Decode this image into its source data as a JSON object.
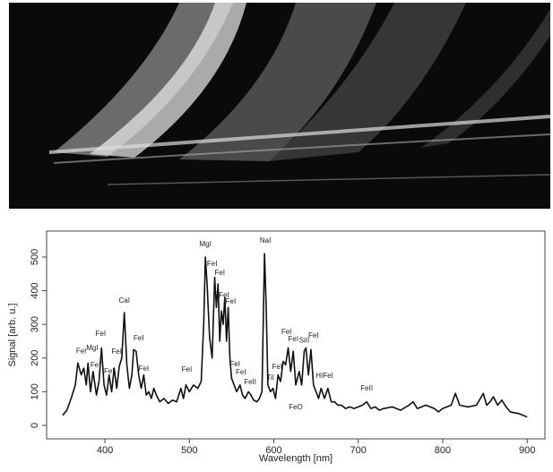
{
  "chart_data": {
    "type": "line",
    "xlabel": "Wavelength [nm]",
    "ylabel": "Signal [arb. u.]",
    "x": [
      350,
      355,
      360,
      365,
      368,
      372,
      375,
      378,
      380,
      383,
      386,
      390,
      393,
      396,
      399,
      402,
      405,
      408,
      411,
      414,
      417,
      420,
      423,
      426,
      429,
      432,
      434,
      437,
      440,
      443,
      446,
      449,
      452,
      455,
      458,
      461,
      465,
      470,
      475,
      480,
      485,
      490,
      493,
      496,
      500,
      505,
      510,
      514,
      517,
      519,
      521,
      524,
      527,
      530,
      532,
      534,
      536,
      538,
      540,
      542,
      544,
      546,
      548,
      550,
      553,
      556,
      560,
      563,
      566,
      570,
      573,
      576,
      580,
      583,
      586,
      589,
      591,
      593,
      596,
      599,
      602,
      605,
      608,
      611,
      614,
      617,
      620,
      623,
      626,
      630,
      633,
      636,
      638,
      641,
      644,
      647,
      650,
      653,
      656,
      660,
      664,
      668,
      672,
      676,
      680,
      685,
      690,
      695,
      700,
      705,
      710,
      715,
      720,
      725,
      730,
      740,
      750,
      760,
      765,
      770,
      780,
      790,
      795,
      800,
      810,
      815,
      820,
      830,
      840,
      848,
      852,
      856,
      860,
      865,
      870,
      875,
      880,
      890,
      900
    ],
    "series": [
      {
        "color": "#111111",
        "values": [
          30,
          45,
          80,
          120,
          185,
          150,
          170,
          120,
          185,
          100,
          160,
          90,
          130,
          230,
          120,
          90,
          150,
          100,
          170,
          110,
          175,
          200,
          335,
          180,
          110,
          150,
          225,
          220,
          150,
          110,
          150,
          90,
          100,
          80,
          110,
          90,
          70,
          80,
          65,
          75,
          70,
          110,
          80,
          120,
          100,
          120,
          110,
          130,
          300,
          500,
          420,
          260,
          200,
          440,
          350,
          420,
          250,
          340,
          300,
          380,
          250,
          350,
          200,
          140,
          120,
          100,
          120,
          90,
          80,
          100,
          90,
          75,
          70,
          80,
          100,
          510,
          350,
          120,
          100,
          110,
          80,
          150,
          130,
          190,
          180,
          230,
          160,
          220,
          120,
          160,
          120,
          220,
          230,
          150,
          225,
          120,
          100,
          80,
          110,
          80,
          110,
          70,
          70,
          60,
          60,
          50,
          55,
          50,
          55,
          60,
          70,
          50,
          55,
          45,
          50,
          55,
          45,
          60,
          70,
          50,
          60,
          50,
          40,
          50,
          60,
          95,
          60,
          55,
          60,
          95,
          60,
          70,
          85,
          60,
          75,
          55,
          40,
          35,
          25
        ]
      }
    ],
    "xlim": [
      331,
      921
    ],
    "ylim": [
      -40,
      577
    ],
    "xticks": [
      400,
      500,
      600,
      700,
      800,
      900
    ],
    "yticks": [
      0,
      100,
      200,
      300,
      400,
      500
    ],
    "annotations": [
      {
        "text": "FeI",
        "x": 372,
        "y": 220
      },
      {
        "text": "MgI",
        "x": 385,
        "y": 229
      },
      {
        "text": "FeI",
        "x": 389,
        "y": 178
      },
      {
        "text": "FeI",
        "x": 395,
        "y": 271
      },
      {
        "text": "FeI",
        "x": 405,
        "y": 160
      },
      {
        "text": "FeI",
        "x": 414,
        "y": 218
      },
      {
        "text": "CaI",
        "x": 423,
        "y": 370
      },
      {
        "text": "FeI",
        "x": 440,
        "y": 258
      },
      {
        "text": "FeI",
        "x": 446,
        "y": 168
      },
      {
        "text": "FeI",
        "x": 497,
        "y": 165
      },
      {
        "text": "MgI",
        "x": 519,
        "y": 537
      },
      {
        "text": "FeI",
        "x": 527,
        "y": 479
      },
      {
        "text": "FeI",
        "x": 536,
        "y": 452
      },
      {
        "text": "FeI",
        "x": 541,
        "y": 386
      },
      {
        "text": "FeI",
        "x": 549,
        "y": 367
      },
      {
        "text": "FeI",
        "x": 554,
        "y": 181
      },
      {
        "text": "FeI",
        "x": 561,
        "y": 157
      },
      {
        "text": "FeII",
        "x": 572,
        "y": 128
      },
      {
        "text": "NaI",
        "x": 590,
        "y": 548
      },
      {
        "text": "TiI",
        "x": 596,
        "y": 141
      },
      {
        "text": "FeI",
        "x": 604,
        "y": 173
      },
      {
        "text": "FeI",
        "x": 615,
        "y": 277
      },
      {
        "text": "FeI",
        "x": 623,
        "y": 255
      },
      {
        "text": "FeO",
        "x": 626,
        "y": 53
      },
      {
        "text": "SiII",
        "x": 636,
        "y": 252
      },
      {
        "text": "FeI",
        "x": 647,
        "y": 266
      },
      {
        "text": "HIFeI",
        "x": 660,
        "y": 146
      },
      {
        "text": "FeII",
        "x": 710,
        "y": 109
      }
    ]
  }
}
